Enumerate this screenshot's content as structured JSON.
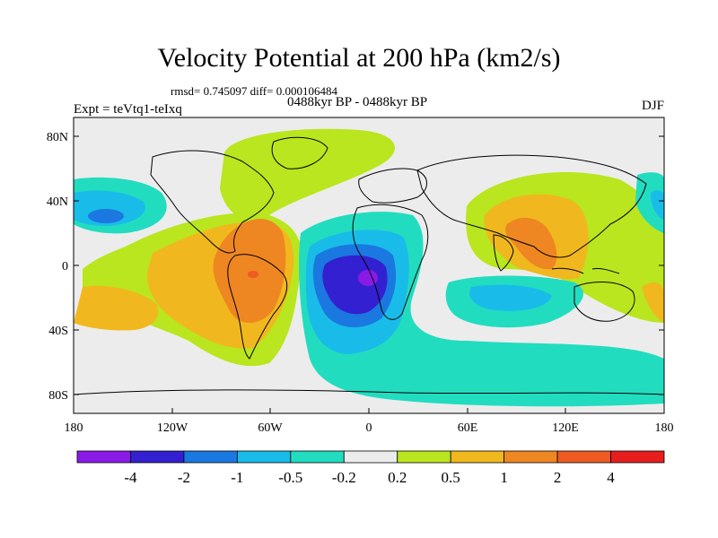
{
  "title": "Velocity Potential at 200 hPa (km2/s)",
  "stats": "rmsd= 0.745097 diff= 0.000106484",
  "experiment": "Expt = teVtq1-teIxq",
  "period": "0488kyr BP - 0488kyr BP",
  "season": "DJF",
  "lat_labels": [
    "80N",
    "40N",
    "0",
    "40S",
    "80S"
  ],
  "lon_labels": [
    "180",
    "120W",
    "60W",
    "0",
    "60E",
    "120E",
    "180"
  ],
  "colorbar": {
    "labels": [
      "-4",
      "-2",
      "-1",
      "-0.5",
      "-0.2",
      "0.2",
      "0.5",
      "1",
      "2",
      "4"
    ],
    "colors": [
      "#8a1ae6",
      "#3320d0",
      "#1a78e0",
      "#19bce8",
      "#22dcc0",
      "#ececec",
      "#b9e61e",
      "#f0b81e",
      "#ee8622",
      "#ee5a22",
      "#e61e1e"
    ]
  },
  "colors": {
    "zero_band": "#ececec",
    "land_outline": "#000000"
  }
}
